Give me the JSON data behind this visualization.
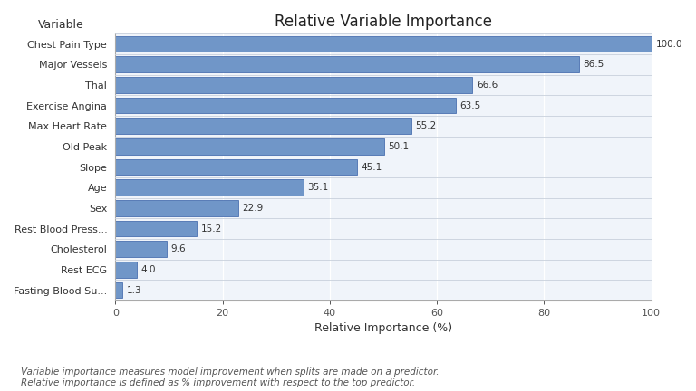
{
  "title": "Relative Variable Importance",
  "xlabel": "Relative Importance (%)",
  "ylabel": "Variable",
  "categories": [
    "Fasting Blood Su...",
    "Rest ECG",
    "Cholesterol",
    "Rest Blood Press...",
    "Sex",
    "Age",
    "Slope",
    "Old Peak",
    "Max Heart Rate",
    "Exercise Angina",
    "Thal",
    "Major Vessels",
    "Chest Pain Type"
  ],
  "values": [
    1.3,
    4.0,
    9.6,
    15.2,
    22.9,
    35.1,
    45.1,
    50.1,
    55.2,
    63.5,
    66.6,
    86.5,
    100.0
  ],
  "bar_color": "#7096c8",
  "bar_edge_color": "#4a70b0",
  "xlim": [
    0,
    100
  ],
  "xticks": [
    0,
    20,
    40,
    60,
    80,
    100
  ],
  "background_color": "#f0f4fa",
  "fig_bg_color": "#ffffff",
  "grid_color": "#ffffff",
  "separator_color": "#c8d0dc",
  "footnote_line1": "Variable importance measures model improvement when splits are made on a predictor.",
  "footnote_line2": "Relative importance is defined as % improvement with respect to the top predictor.",
  "title_fontsize": 12,
  "label_fontsize": 9,
  "tick_fontsize": 8,
  "footnote_fontsize": 7.5,
  "bar_label_fontsize": 7.5,
  "ylabel_label_fontsize": 9
}
